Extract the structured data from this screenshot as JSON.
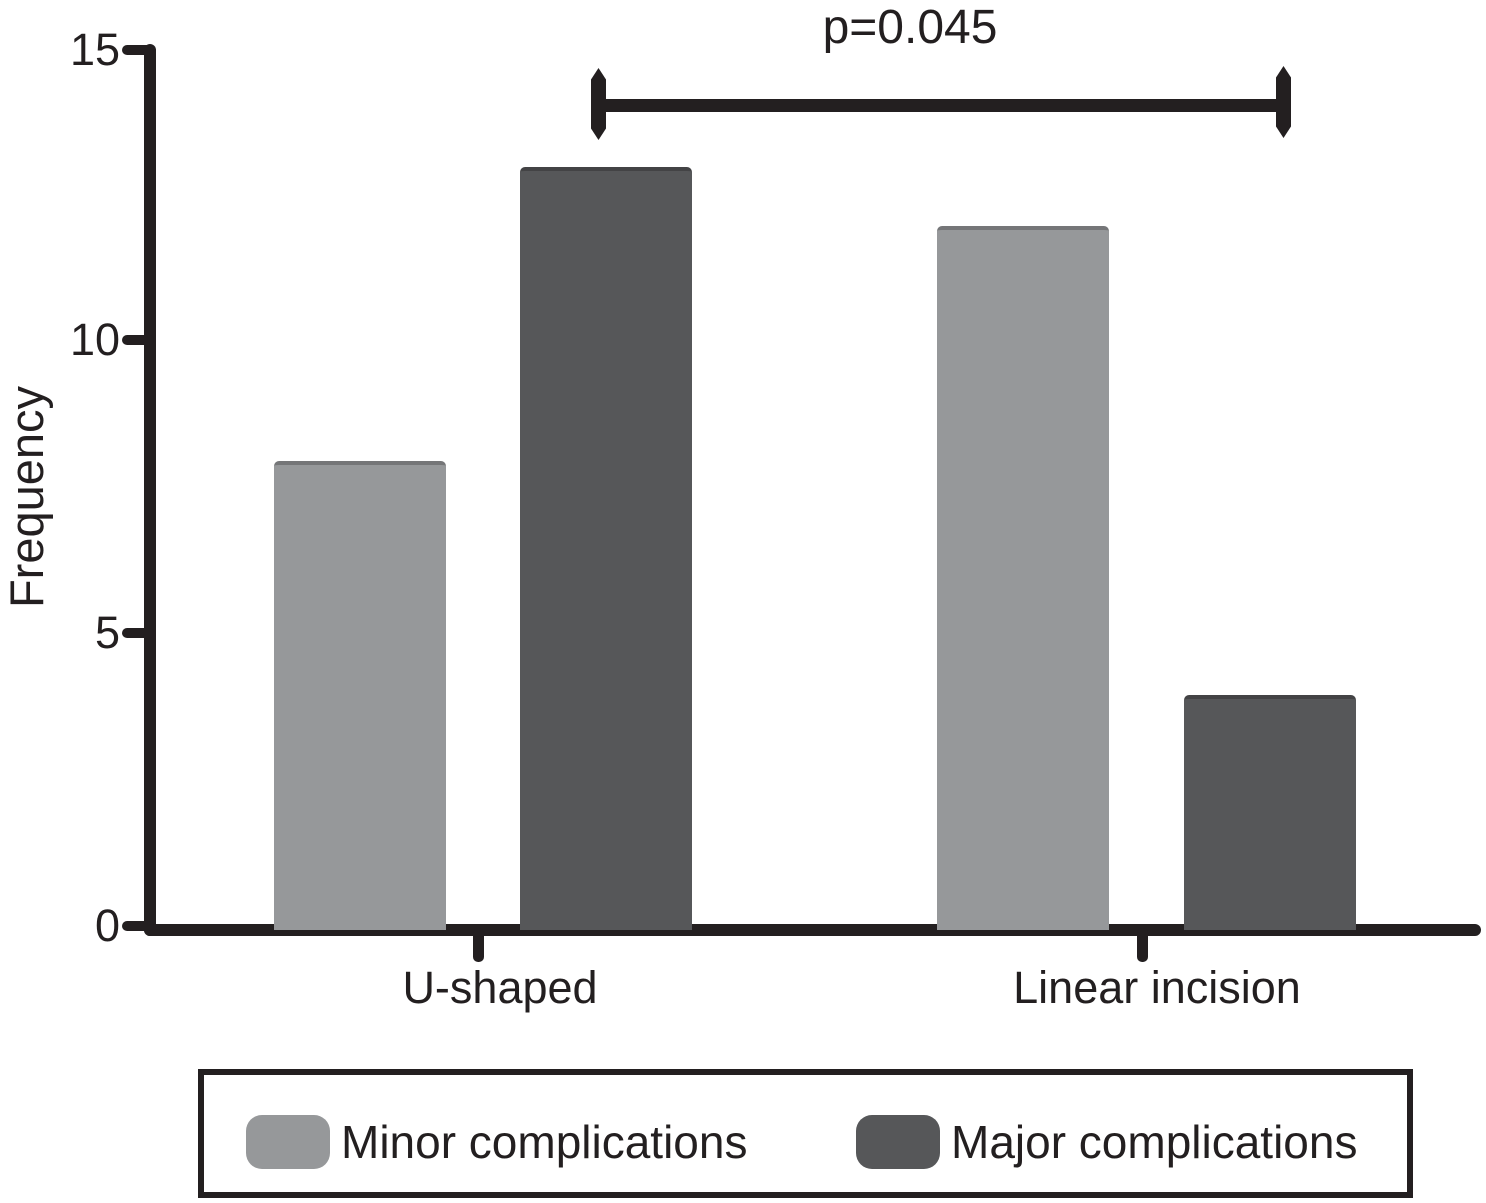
{
  "chart_data": {
    "type": "bar",
    "categories": [
      "U-shaped",
      "Linear incision"
    ],
    "series": [
      {
        "name": "Minor complications",
        "values": [
          8,
          12
        ],
        "color": "#96989a"
      },
      {
        "name": "Major complications",
        "values": [
          13,
          4
        ],
        "color": "#565759"
      }
    ],
    "ylabel": "Frequency",
    "ylim": [
      0,
      15
    ],
    "ytick_labels": [
      "15",
      "10",
      "5",
      "0"
    ],
    "grid": false,
    "legend_position": "bottom-boxed",
    "annotation": {
      "text": "p=0.045",
      "compares": [
        "Major complications @ U-shaped",
        "Major complications @ Linear incision"
      ]
    },
    "axis_color": "#231f20"
  }
}
